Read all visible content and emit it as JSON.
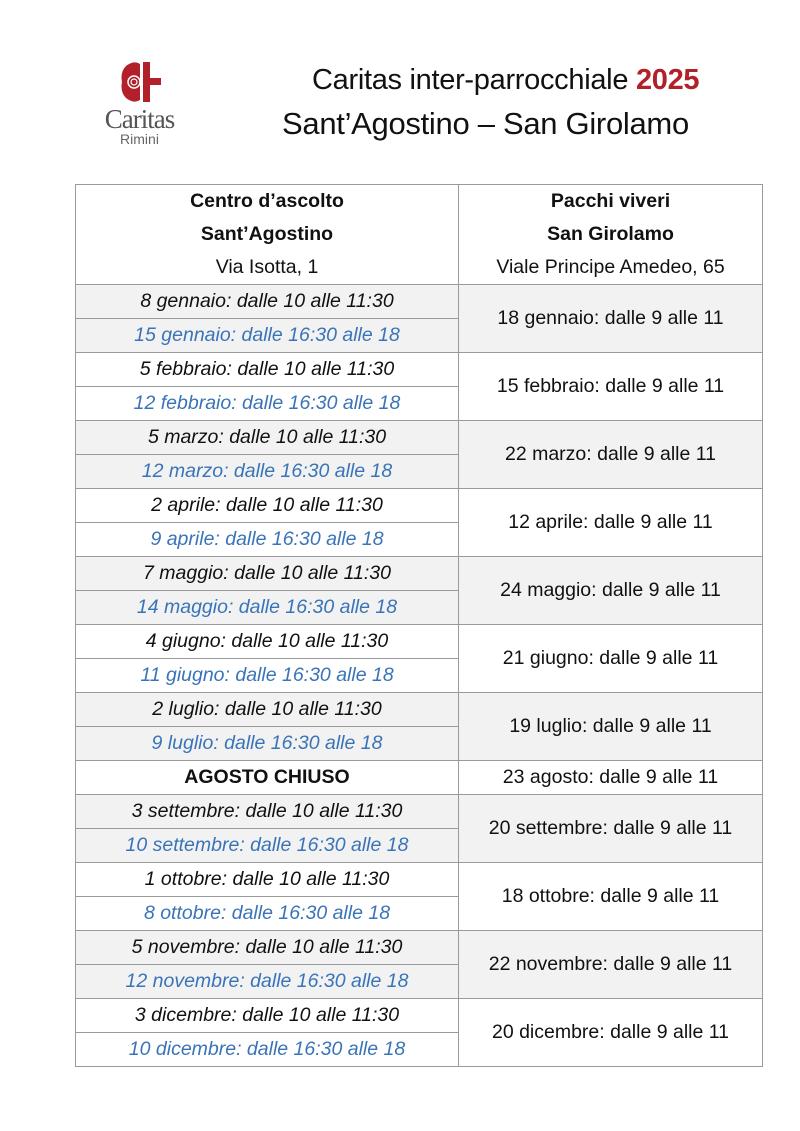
{
  "logo": {
    "name": "Caritas",
    "city": "Rimini"
  },
  "header": {
    "title_main": "Caritas inter-parrocchiale",
    "year": "2025",
    "subtitle": "Sant’Agostino – San Girolamo"
  },
  "colors": {
    "year": "#b2202a",
    "afternoon_text": "#3a74b8",
    "shaded_row": "#f2f2f2",
    "logo_red": "#b2202a"
  },
  "table": {
    "left_header": {
      "line1": "Centro d’ascolto",
      "line2": "Sant’Agostino",
      "address": "Via Isotta, 1"
    },
    "right_header": {
      "line1": "Pacchi viveri",
      "line2": "San Girolamo",
      "address": "Viale Principe Amedeo, 65"
    },
    "months": [
      {
        "morning": "8 gennaio: dalle 10 alle 11:30",
        "afternoon": "15 gennaio: dalle 16:30 alle 18",
        "pacchi": "18 gennaio: dalle 9 alle 11"
      },
      {
        "morning": "5 febbraio: dalle 10 alle 11:30",
        "afternoon": "12 febbraio: dalle 16:30 alle 18",
        "pacchi": "15 febbraio: dalle 9 alle 11"
      },
      {
        "morning": "5 marzo: dalle 10 alle 11:30",
        "afternoon": "12 marzo: dalle 16:30 alle 18",
        "pacchi": "22 marzo: dalle 9 alle 11"
      },
      {
        "morning": "2 aprile: dalle 10 alle 11:30",
        "afternoon": "9 aprile: dalle 16:30 alle 18",
        "pacchi": "12 aprile: dalle 9 alle 11"
      },
      {
        "morning": "7 maggio: dalle 10 alle 11:30",
        "afternoon": "14 maggio: dalle 16:30 alle 18",
        "pacchi": "24 maggio: dalle 9 alle 11"
      },
      {
        "morning": "4 giugno: dalle 10 alle 11:30",
        "afternoon": "11 giugno: dalle 16:30 alle 18",
        "pacchi": "21 giugno: dalle 9 alle 11"
      },
      {
        "morning": "2 luglio: dalle 10 alle 11:30",
        "afternoon": "9 luglio: dalle 16:30 alle 18",
        "pacchi": "19 luglio: dalle 9 alle 11"
      },
      {
        "closed": "AGOSTO CHIUSO",
        "pacchi": "23 agosto: dalle 9 alle 11"
      },
      {
        "morning": "3 settembre: dalle 10 alle 11:30",
        "afternoon": "10 settembre: dalle 16:30 alle 18",
        "pacchi": "20 settembre: dalle 9 alle 11"
      },
      {
        "morning": "1 ottobre: dalle 10 alle 11:30",
        "afternoon": "8 ottobre: dalle 16:30 alle 18",
        "pacchi": "18 ottobre: dalle 9 alle 11"
      },
      {
        "morning": "5 novembre: dalle 10 alle 11:30",
        "afternoon": "12 novembre: dalle 16:30 alle 18",
        "pacchi": "22 novembre: dalle 9 alle 11"
      },
      {
        "morning": "3 dicembre: dalle 10 alle 11:30",
        "afternoon": "10 dicembre: dalle 16:30 alle 18",
        "pacchi": "20 dicembre: dalle 9 alle 11"
      }
    ]
  }
}
